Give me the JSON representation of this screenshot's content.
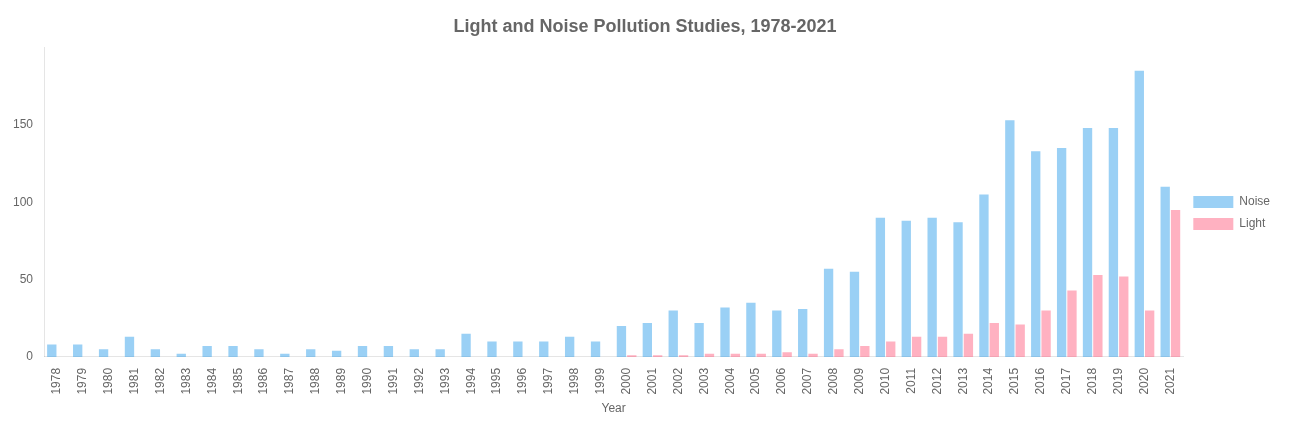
{
  "chart_data": {
    "type": "bar",
    "title": "Light and Noise Pollution Studies, 1978-2021",
    "x_label": "Year",
    "categories": [
      "1978",
      "1979",
      "1980",
      "1981",
      "1982",
      "1983",
      "1984",
      "1985",
      "1986",
      "1987",
      "1988",
      "1989",
      "1990",
      "1991",
      "1992",
      "1993",
      "1994",
      "1995",
      "1996",
      "1997",
      "1998",
      "1999",
      "2000",
      "2001",
      "2002",
      "2003",
      "2004",
      "2005",
      "2006",
      "2007",
      "2008",
      "2009",
      "2010",
      "2011",
      "2012",
      "2013",
      "2014",
      "2015",
      "2016",
      "2017",
      "2018",
      "2019",
      "2020",
      "2021"
    ],
    "series": [
      {
        "name": "Noise",
        "values": [
          8,
          8,
          5,
          13,
          5,
          2,
          7,
          7,
          5,
          2,
          5,
          4,
          7,
          7,
          5,
          5,
          15,
          10,
          10,
          10,
          13,
          10,
          20,
          22,
          30,
          22,
          32,
          35,
          30,
          31,
          57,
          55,
          90,
          88,
          90,
          87,
          105,
          153,
          133,
          135,
          148,
          148,
          185,
          110
        ]
      },
      {
        "name": "Light",
        "values": [
          0,
          0,
          0,
          0,
          0,
          0,
          0,
          0,
          0,
          0,
          0,
          0,
          0,
          0,
          0,
          0,
          0,
          0,
          0,
          0,
          0,
          0,
          1,
          1,
          1,
          2,
          2,
          2,
          3,
          2,
          5,
          7,
          10,
          13,
          13,
          15,
          22,
          21,
          30,
          43,
          53,
          52,
          30,
          95
        ]
      }
    ],
    "ylim": [
      0,
      200
    ],
    "yticks": [
      0,
      50,
      100,
      150
    ],
    "grid": false,
    "legend": "right"
  }
}
